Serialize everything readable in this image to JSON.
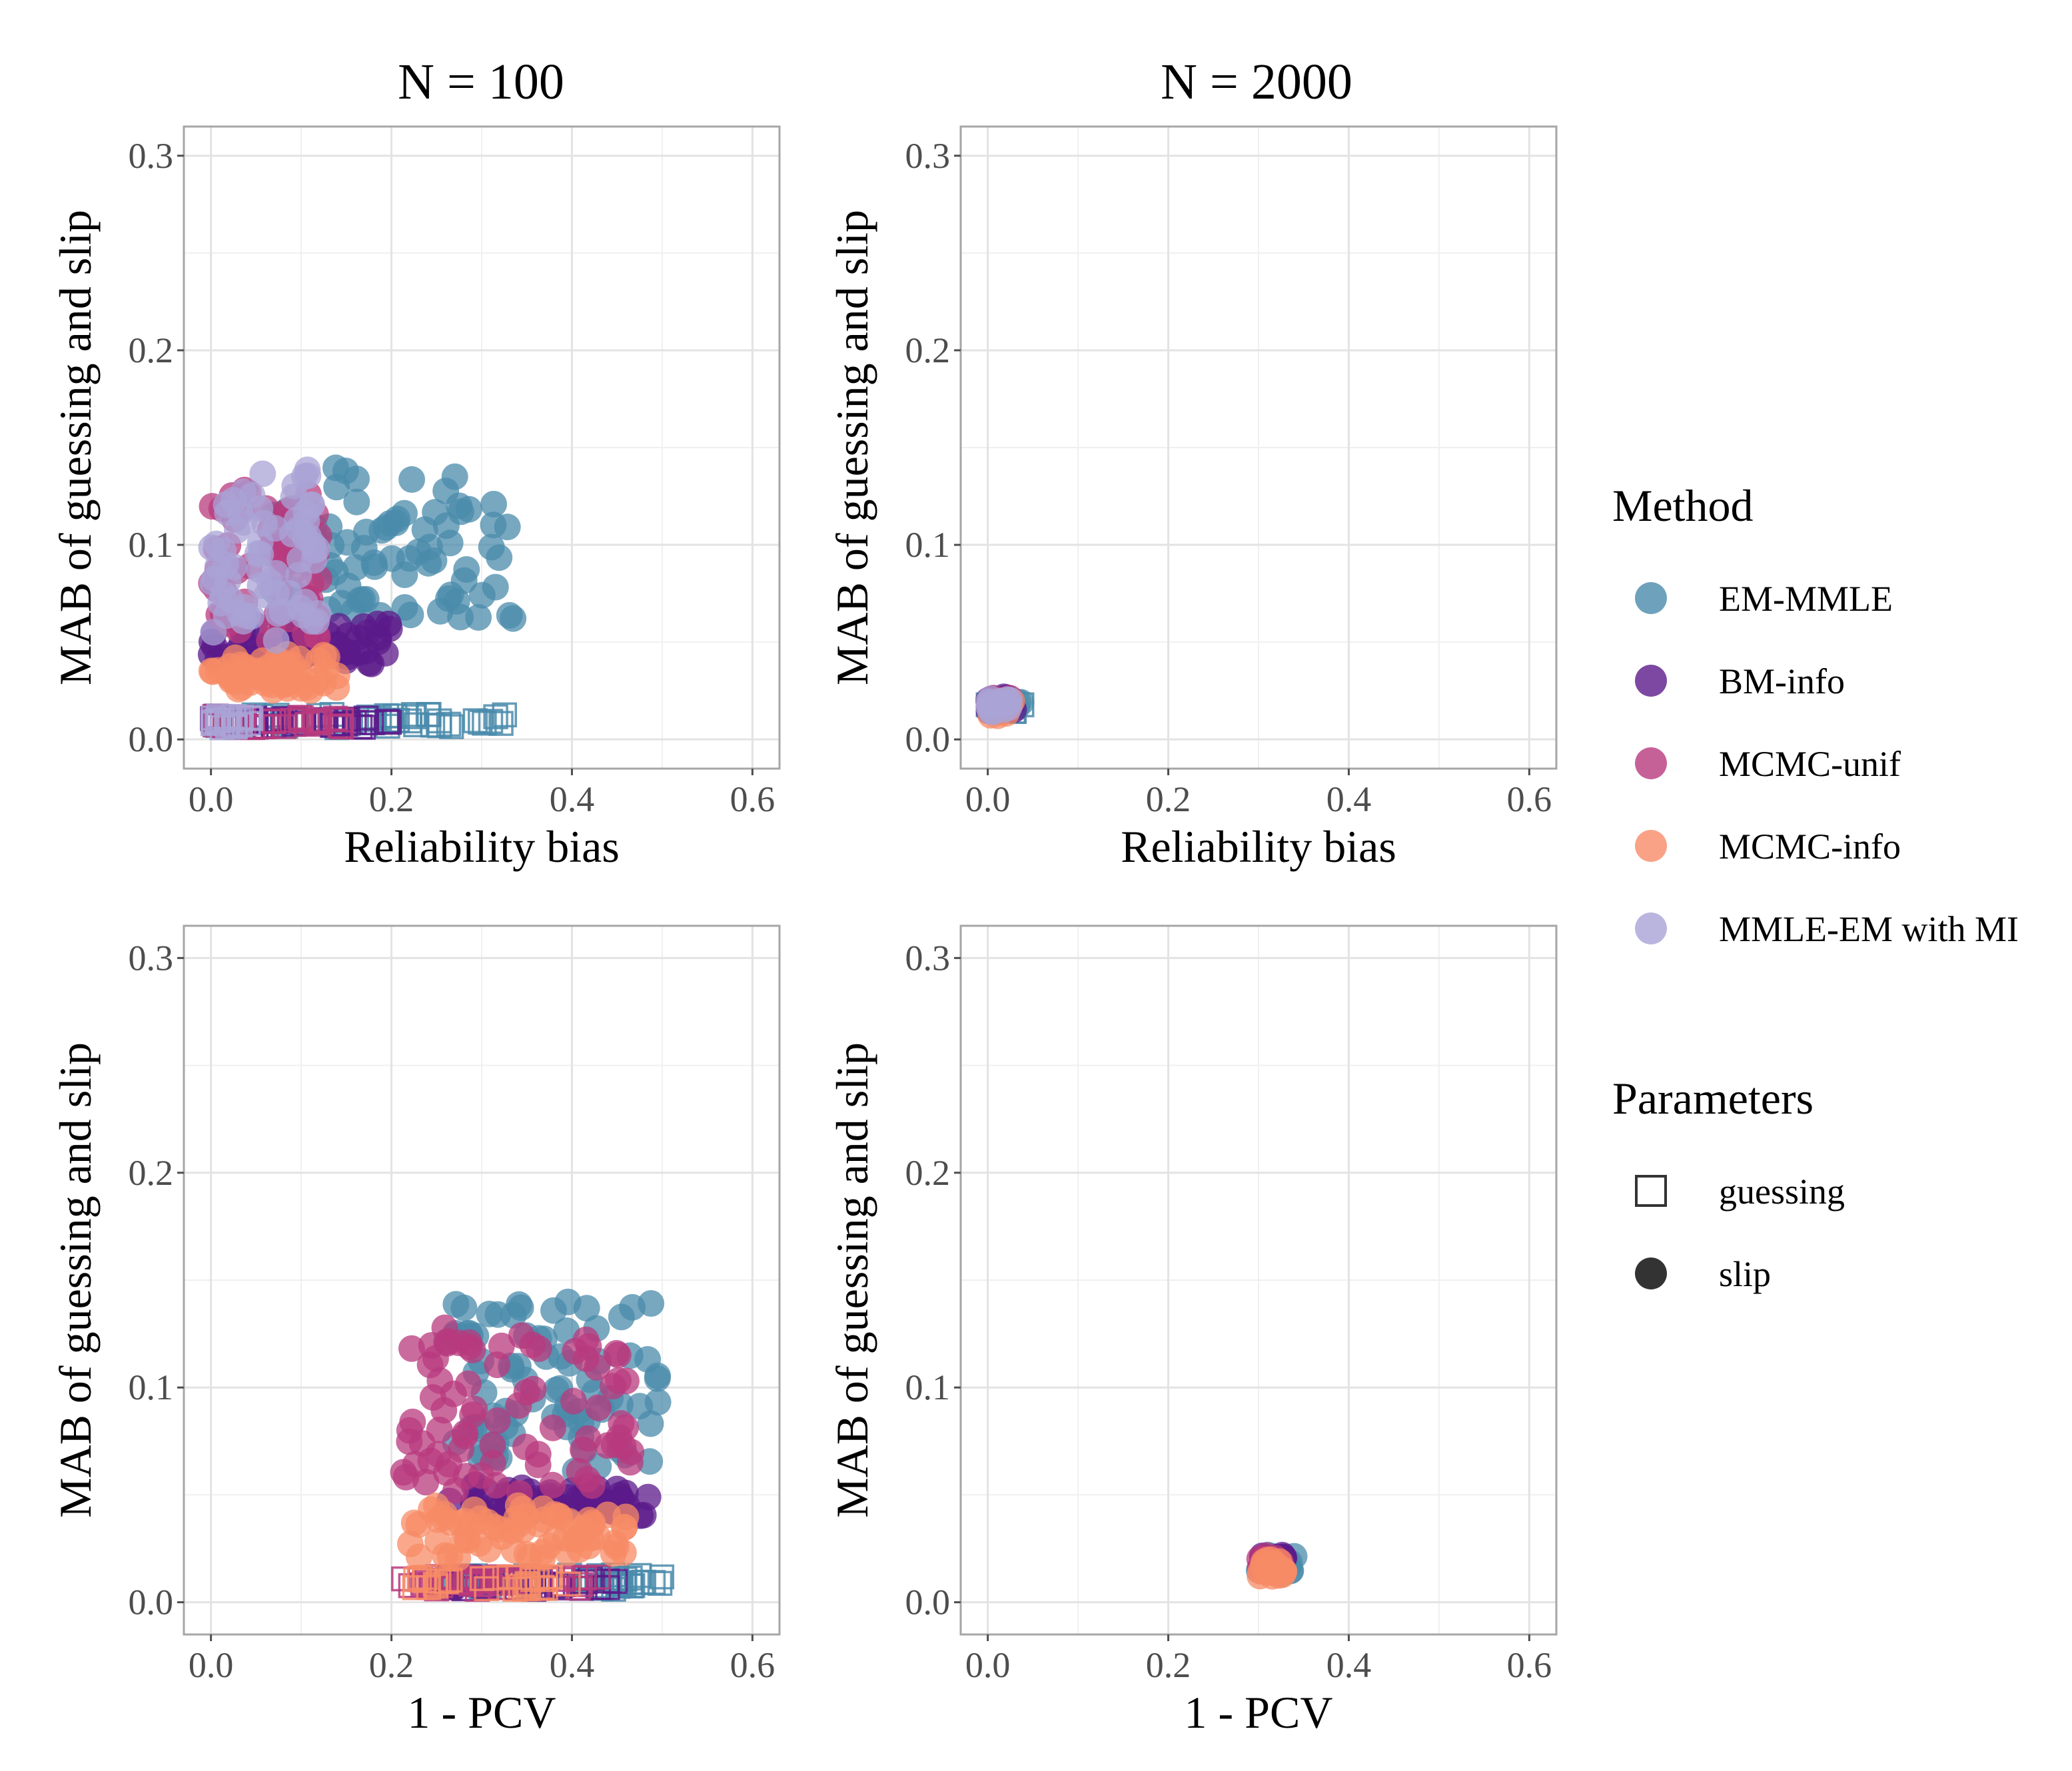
{
  "chart_data": {
    "type": "scatter",
    "facet_columns": [
      "N = 100",
      "N = 2000"
    ],
    "panels": [
      {
        "column": "N = 100",
        "xlabel": "Reliability bias",
        "ylabel": "MAB of guessing and slip",
        "xlim": [
          -0.03,
          0.63
        ],
        "ylim": [
          -0.015,
          0.315
        ],
        "xticks": [
          "0.0",
          "0.2",
          "0.4",
          "0.6"
        ],
        "yticks": [
          "0.0",
          "0.1",
          "0.2",
          "0.3"
        ],
        "series": [
          {
            "method": "EM-MMLE",
            "parameter": "slip",
            "x_range": [
              0.06,
              0.34
            ],
            "y_range": [
              0.06,
              0.14
            ],
            "n": 80,
            "seed": 11
          },
          {
            "method": "BM-info",
            "parameter": "slip",
            "x_range": [
              0.0,
              0.2
            ],
            "y_range": [
              0.038,
              0.06
            ],
            "n": 60,
            "seed": 12
          },
          {
            "method": "MCMC-unif",
            "parameter": "slip",
            "x_range": [
              0.0,
              0.12
            ],
            "y_range": [
              0.05,
              0.13
            ],
            "n": 60,
            "seed": 13
          },
          {
            "method": "MCMC-info",
            "parameter": "slip",
            "x_range": [
              0.0,
              0.15
            ],
            "y_range": [
              0.025,
              0.045
            ],
            "n": 60,
            "seed": 14
          },
          {
            "method": "MMLE-EM with MI",
            "parameter": "slip",
            "x_range": [
              0.0,
              0.12
            ],
            "y_range": [
              0.05,
              0.14
            ],
            "n": 70,
            "seed": 15
          },
          {
            "method": "EM-MMLE",
            "parameter": "guessing",
            "x_range": [
              0.0,
              0.34
            ],
            "y_range": [
              0.006,
              0.013
            ],
            "n": 50,
            "seed": 16
          },
          {
            "method": "BM-info",
            "parameter": "guessing",
            "x_range": [
              0.0,
              0.2
            ],
            "y_range": [
              0.006,
              0.012
            ],
            "n": 40,
            "seed": 17
          },
          {
            "method": "MCMC-unif",
            "parameter": "guessing",
            "x_range": [
              0.0,
              0.15
            ],
            "y_range": [
              0.006,
              0.012
            ],
            "n": 30,
            "seed": 18
          },
          {
            "method": "MMLE-EM with MI",
            "parameter": "guessing",
            "x_range": [
              0.0,
              0.05
            ],
            "y_range": [
              0.006,
              0.012
            ],
            "n": 20,
            "seed": 19
          }
        ]
      },
      {
        "column": "N = 2000",
        "xlabel": "Reliability bias",
        "ylabel": "MAB of guessing and slip",
        "xlim": [
          -0.03,
          0.63
        ],
        "ylim": [
          -0.015,
          0.315
        ],
        "xticks": [
          "0.0",
          "0.2",
          "0.4",
          "0.6"
        ],
        "yticks": [
          "0.0",
          "0.1",
          "0.2",
          "0.3"
        ],
        "series": [
          {
            "method": "EM-MMLE",
            "parameter": "slip",
            "x_range": [
              0.0,
              0.04
            ],
            "y_range": [
              0.014,
              0.022
            ],
            "n": 20,
            "seed": 21
          },
          {
            "method": "BM-info",
            "parameter": "slip",
            "x_range": [
              0.0,
              0.03
            ],
            "y_range": [
              0.014,
              0.022
            ],
            "n": 15,
            "seed": 22
          },
          {
            "method": "MCMC-unif",
            "parameter": "slip",
            "x_range": [
              0.0,
              0.03
            ],
            "y_range": [
              0.014,
              0.022
            ],
            "n": 15,
            "seed": 23
          },
          {
            "method": "MCMC-info",
            "parameter": "slip",
            "x_range": [
              0.0,
              0.03
            ],
            "y_range": [
              0.012,
              0.02
            ],
            "n": 15,
            "seed": 24
          },
          {
            "method": "MMLE-EM with MI",
            "parameter": "slip",
            "x_range": [
              0.0,
              0.025
            ],
            "y_range": [
              0.014,
              0.022
            ],
            "n": 15,
            "seed": 25
          },
          {
            "method": "EM-MMLE",
            "parameter": "guessing",
            "x_range": [
              0.0,
              0.04
            ],
            "y_range": [
              0.014,
              0.02
            ],
            "n": 10,
            "seed": 26
          }
        ]
      },
      {
        "column": "N = 100",
        "xlabel": "1 - PCV",
        "ylabel": "MAB of guessing and slip",
        "xlim": [
          -0.03,
          0.63
        ],
        "ylim": [
          -0.015,
          0.315
        ],
        "xticks": [
          "0.0",
          "0.2",
          "0.4",
          "0.6"
        ],
        "yticks": [
          "0.0",
          "0.1",
          "0.2",
          "0.3"
        ],
        "series": [
          {
            "method": "EM-MMLE",
            "parameter": "slip",
            "x_range": [
              0.26,
              0.5
            ],
            "y_range": [
              0.06,
              0.14
            ],
            "n": 80,
            "seed": 31
          },
          {
            "method": "BM-info",
            "parameter": "slip",
            "x_range": [
              0.26,
              0.49
            ],
            "y_range": [
              0.04,
              0.055
            ],
            "n": 60,
            "seed": 32
          },
          {
            "method": "MCMC-unif",
            "parameter": "slip",
            "x_range": [
              0.21,
              0.48
            ],
            "y_range": [
              0.05,
              0.128
            ],
            "n": 80,
            "seed": 33
          },
          {
            "method": "MCMC-info",
            "parameter": "slip",
            "x_range": [
              0.22,
              0.46
            ],
            "y_range": [
              0.02,
              0.045
            ],
            "n": 70,
            "seed": 34
          },
          {
            "method": "EM-MMLE",
            "parameter": "guessing",
            "x_range": [
              0.25,
              0.5
            ],
            "y_range": [
              0.006,
              0.013
            ],
            "n": 50,
            "seed": 35
          },
          {
            "method": "BM-info",
            "parameter": "guessing",
            "x_range": [
              0.25,
              0.48
            ],
            "y_range": [
              0.006,
              0.012
            ],
            "n": 40,
            "seed": 36
          },
          {
            "method": "MCMC-unif",
            "parameter": "guessing",
            "x_range": [
              0.21,
              0.47
            ],
            "y_range": [
              0.006,
              0.012
            ],
            "n": 40,
            "seed": 37
          },
          {
            "method": "MCMC-info",
            "parameter": "guessing",
            "x_range": [
              0.22,
              0.4
            ],
            "y_range": [
              0.006,
              0.012
            ],
            "n": 30,
            "seed": 38
          }
        ]
      },
      {
        "column": "N = 2000",
        "xlabel": "1 - PCV",
        "ylabel": "MAB of guessing and slip",
        "xlim": [
          -0.03,
          0.63
        ],
        "ylim": [
          -0.015,
          0.315
        ],
        "xticks": [
          "0.0",
          "0.2",
          "0.4",
          "0.6"
        ],
        "yticks": [
          "0.0",
          "0.1",
          "0.2",
          "0.3"
        ],
        "series": [
          {
            "method": "EM-MMLE",
            "parameter": "slip",
            "x_range": [
              0.3,
              0.34
            ],
            "y_range": [
              0.013,
              0.022
            ],
            "n": 15,
            "seed": 41
          },
          {
            "method": "BM-info",
            "parameter": "slip",
            "x_range": [
              0.3,
              0.33
            ],
            "y_range": [
              0.014,
              0.022
            ],
            "n": 15,
            "seed": 42
          },
          {
            "method": "MCMC-unif",
            "parameter": "slip",
            "x_range": [
              0.3,
              0.33
            ],
            "y_range": [
              0.014,
              0.022
            ],
            "n": 15,
            "seed": 43
          },
          {
            "method": "MCMC-info",
            "parameter": "slip",
            "x_range": [
              0.3,
              0.33
            ],
            "y_range": [
              0.012,
              0.02
            ],
            "n": 20,
            "seed": 44
          }
        ]
      }
    ],
    "legend": {
      "position": "right",
      "method_title": "Method",
      "methods": [
        {
          "name": "EM-MMLE",
          "color": "#4a8bab"
        },
        {
          "name": "BM-info",
          "color": "#5b1a8a"
        },
        {
          "name": "MCMC-unif",
          "color": "#b83a7e"
        },
        {
          "name": "MCMC-info",
          "color": "#f78b66"
        },
        {
          "name": "MMLE-EM with MI",
          "color": "#a9a3d6"
        }
      ],
      "parameter_title": "Parameters",
      "parameters": [
        {
          "name": "guessing",
          "shape": "open-square"
        },
        {
          "name": "slip",
          "shape": "filled-circle"
        }
      ]
    }
  }
}
